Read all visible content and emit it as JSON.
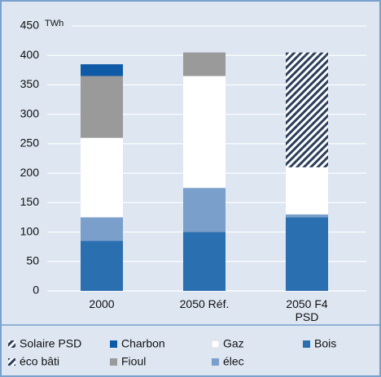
{
  "chart_data": {
    "type": "stacked_bar",
    "y_label": "TWh",
    "categories": [
      "2000",
      "2050 Réf.",
      "2050 F4 PSD"
    ],
    "series": [
      {
        "name": "Bois",
        "color": "#2a6fb0",
        "values": [
          85,
          100,
          125
        ]
      },
      {
        "name": "élec",
        "color": "#7b9fcb",
        "values": [
          40,
          75,
          5
        ]
      },
      {
        "name": "Gaz",
        "color": "#ffffff",
        "values": [
          135,
          190,
          80
        ]
      },
      {
        "name": "Fioul",
        "color": "#9a9a9a",
        "values": [
          105,
          40,
          0
        ]
      },
      {
        "name": "Charbon",
        "color": "#0f5aa6",
        "values": [
          20,
          0,
          0
        ]
      },
      {
        "name": "éco bâti",
        "color": "#2b3f5c",
        "hatch": true,
        "values": [
          0,
          0,
          190
        ]
      },
      {
        "name": "Solaire PSD",
        "color": "#1a2a40",
        "hatch": true,
        "values": [
          0,
          0,
          5
        ]
      }
    ],
    "ylim": [
      0,
      450
    ],
    "yticks": [
      0,
      50,
      100,
      150,
      200,
      250,
      300,
      350,
      400,
      450
    ],
    "grid": true
  }
}
